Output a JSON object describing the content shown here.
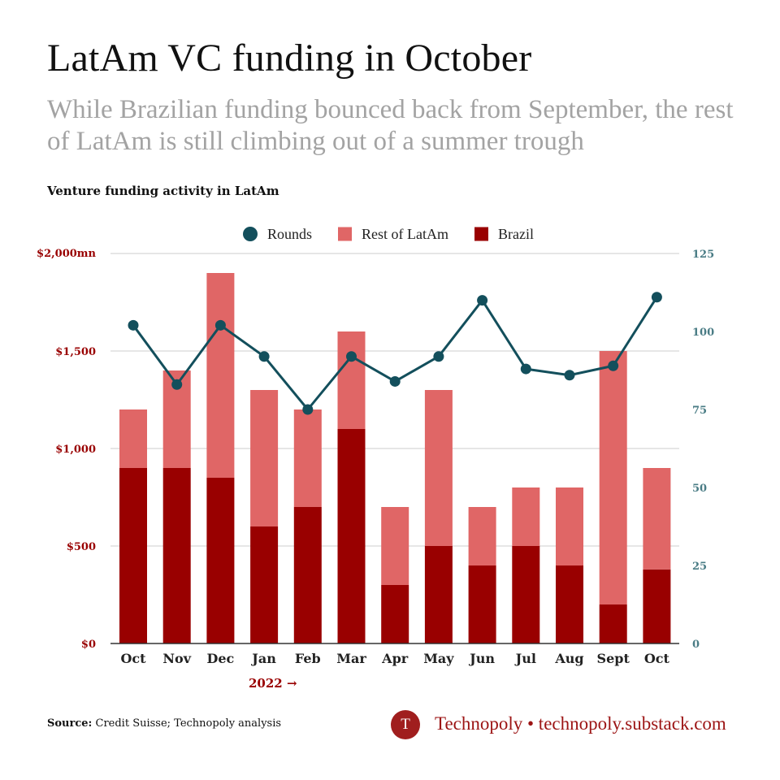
{
  "header": {
    "title": "LatAm VC funding in October",
    "subtitle": "While Brazilian funding bounced back from September, the rest of LatAm is still climbing out of a summer trough",
    "chart_heading": "Venture funding activity in LatAm"
  },
  "footer": {
    "source_label": "Source:",
    "source_text": "Credit Suisse; Technopoly analysis",
    "logo_letter": "T",
    "brand": "Technopoly • technopoly.substack.com"
  },
  "colors": {
    "brazil": "#990000",
    "rest_of_latam": "#e06666",
    "rounds": "#134f5c",
    "left_axis_text": "#990000",
    "right_axis_text": "#4a7c85",
    "grid": "#cccccc",
    "axis": "#333333",
    "brand": "#9c1414"
  },
  "chart_data": {
    "type": "bar",
    "stacked": true,
    "categories": [
      "Oct",
      "Nov",
      "Dec",
      "Jan",
      "Feb",
      "Mar",
      "Apr",
      "May",
      "Jun",
      "Jul",
      "Aug",
      "Sept",
      "Oct"
    ],
    "series": [
      {
        "name": "Brazil",
        "type": "bar",
        "axis": "left",
        "values": [
          900,
          900,
          850,
          600,
          700,
          1100,
          300,
          500,
          400,
          500,
          400,
          200,
          380
        ]
      },
      {
        "name": "Rest of LatAm",
        "type": "bar",
        "axis": "left",
        "values": [
          300,
          500,
          1050,
          700,
          500,
          500,
          400,
          800,
          300,
          300,
          400,
          1300,
          520
        ]
      },
      {
        "name": "Rounds",
        "type": "line",
        "axis": "right",
        "values": [
          102,
          83,
          102,
          92,
          75,
          92,
          84,
          92,
          110,
          88,
          86,
          89,
          111
        ]
      }
    ],
    "legend": [
      "Rounds",
      "Rest of LatAm",
      "Brazil"
    ],
    "legend_position": "top-center",
    "y_left": {
      "ylim": [
        0,
        2000
      ],
      "ticks": [
        0,
        500,
        1000,
        1500,
        2000
      ],
      "tick_labels": [
        "$0",
        "$500",
        "$1,000",
        "$1,500",
        "$2,000mn"
      ]
    },
    "y_right": {
      "ylim": [
        0,
        125
      ],
      "ticks": [
        0,
        25,
        50,
        75,
        100,
        125
      ],
      "tick_labels": [
        "0",
        "25",
        "50",
        "75",
        "100",
        "125"
      ]
    },
    "x_annotation": "2022 →",
    "grid": true
  }
}
